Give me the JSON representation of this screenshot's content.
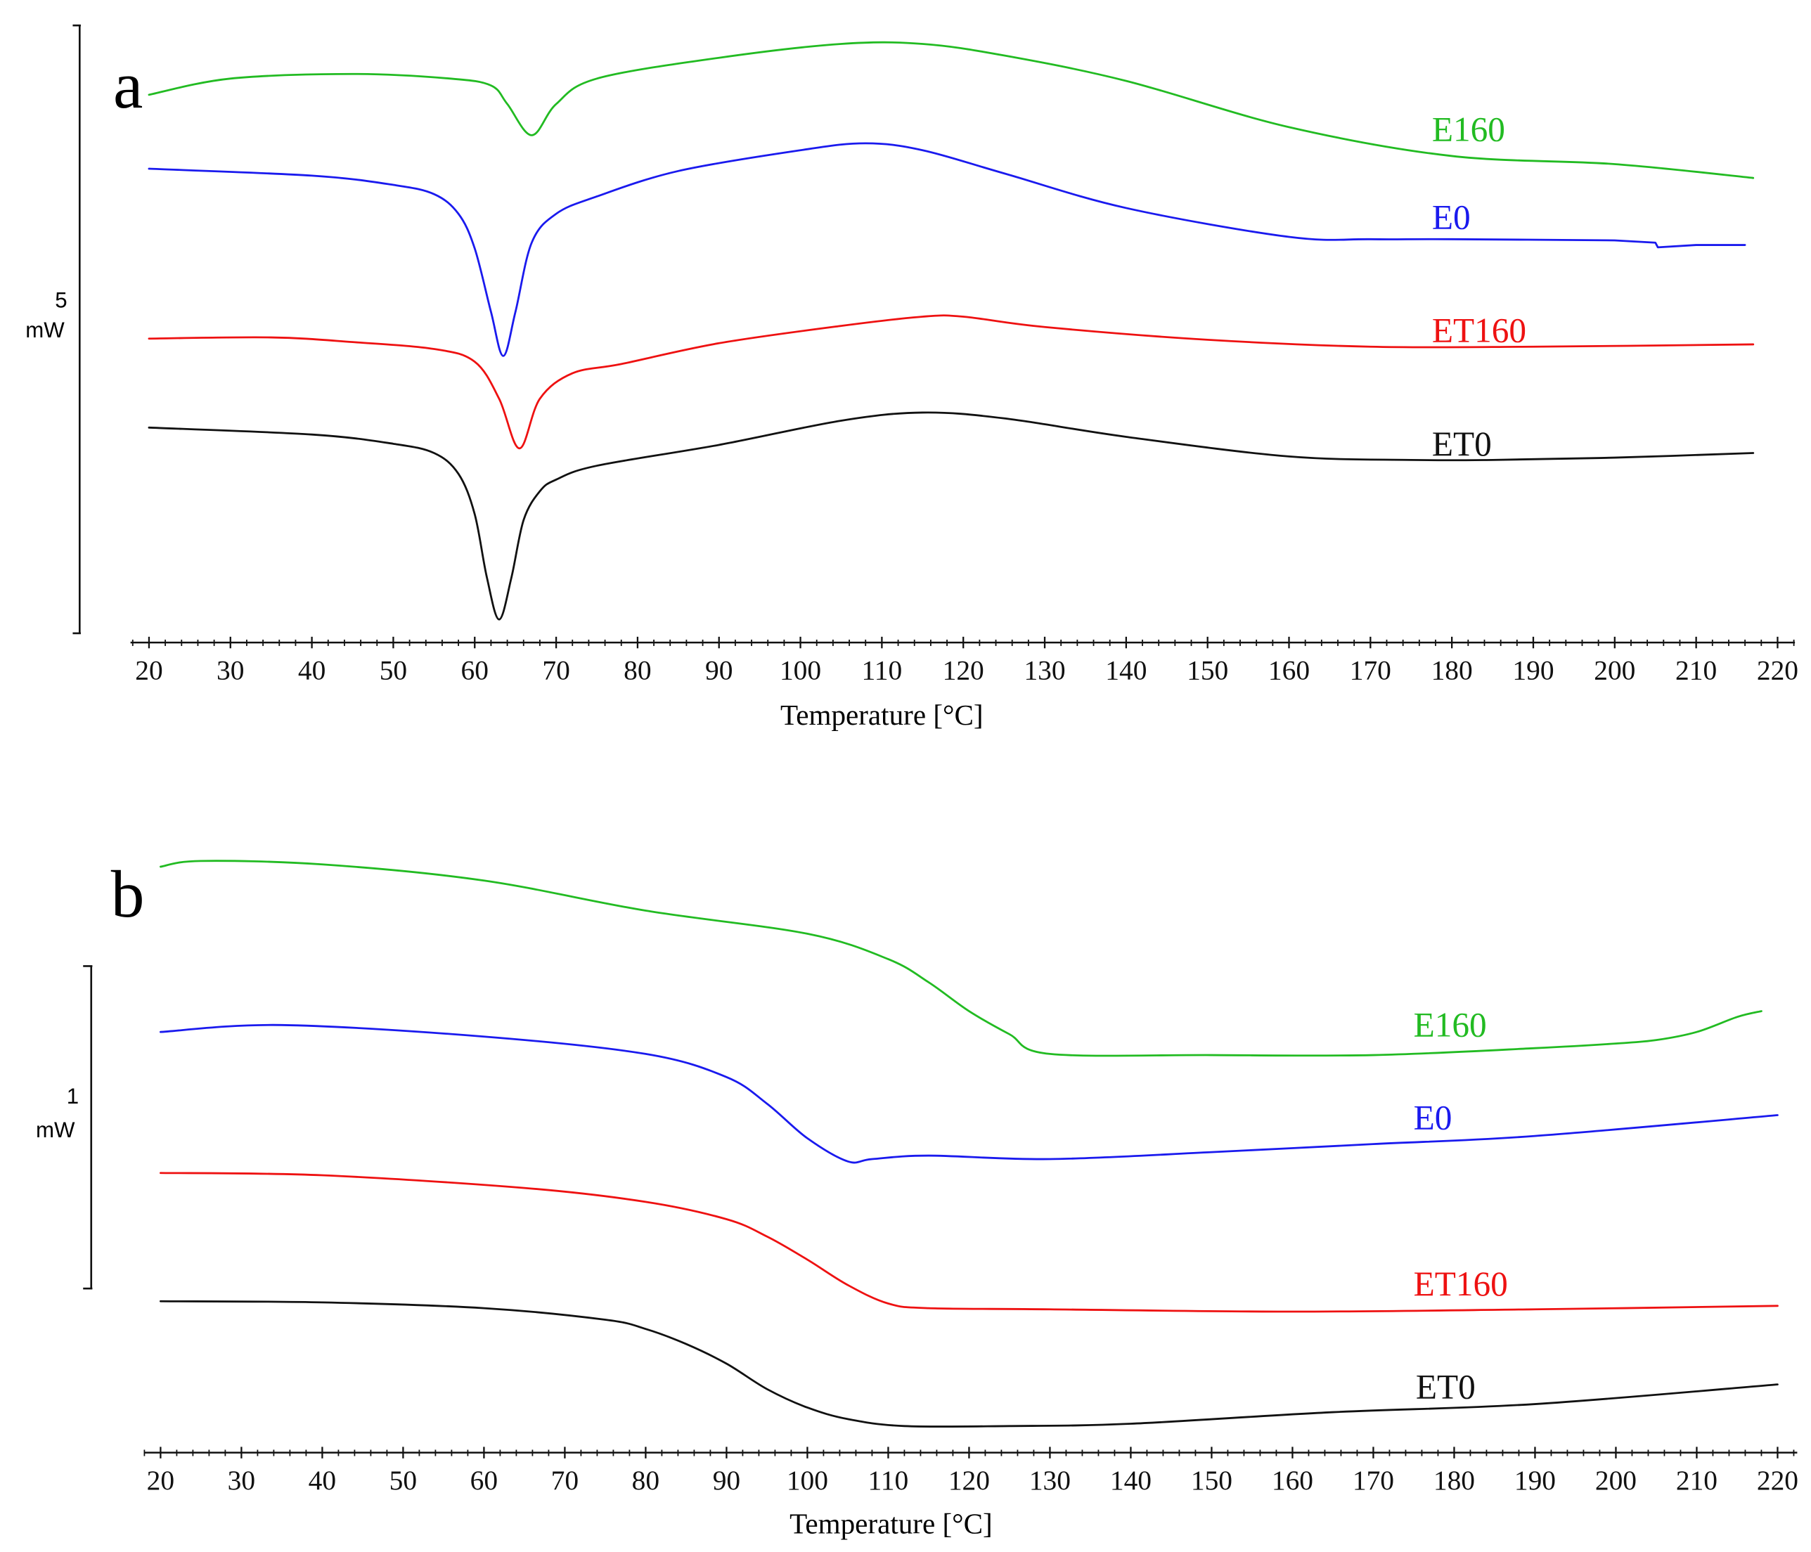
{
  "chart_data": [
    {
      "type": "line",
      "panel_label": "a",
      "xlabel": "Temperature [°C]",
      "xticks": [
        20,
        30,
        40,
        50,
        60,
        70,
        80,
        90,
        100,
        110,
        120,
        130,
        140,
        150,
        160,
        170,
        180,
        190,
        200,
        210,
        220
      ],
      "xlim": [
        20,
        220
      ],
      "scale_bar": {
        "value": "5",
        "unit": "mW"
      },
      "series": [
        {
          "name": "E160",
          "color": "#22bb22",
          "x": [
            20,
            30,
            45,
            57,
            62,
            64,
            67,
            70,
            75,
            90,
            105,
            115,
            125,
            140,
            160,
            180,
            200,
            217
          ],
          "y": [
            82,
            68,
            64,
            68,
            74,
            90,
            117,
            90,
            68,
            50,
            38,
            38,
            48,
            70,
            110,
            135,
            142,
            154
          ]
        },
        {
          "name": "E0",
          "color": "#1a1aee",
          "x": [
            20,
            40,
            50,
            55,
            58,
            60,
            62,
            63.5,
            65,
            67,
            70,
            75,
            85,
            100,
            108,
            115,
            125,
            140,
            160,
            170,
            180,
            200,
            205,
            205.3,
            210,
            216
          ],
          "y": [
            146,
            152,
            160,
            168,
            185,
            215,
            270,
            308,
            270,
            210,
            185,
            170,
            148,
            130,
            124,
            130,
            150,
            180,
            205,
            207,
            207,
            208,
            210,
            214,
            212,
            212
          ],
          "spline": false
        },
        {
          "name": "ET160",
          "color": "#ee1111",
          "x": [
            20,
            35,
            45,
            55,
            60,
            63,
            65.5,
            68,
            72,
            78,
            90,
            105,
            115,
            120,
            130,
            150,
            170,
            190,
            217
          ],
          "y": [
            293,
            292,
            296,
            302,
            313,
            345,
            388,
            345,
            323,
            315,
            297,
            282,
            274,
            274,
            283,
            294,
            300,
            300,
            298
          ]
        },
        {
          "name": "ET0",
          "color": "#111111",
          "x": [
            20,
            40,
            50,
            55,
            58,
            60,
            61.5,
            63,
            64.5,
            66,
            68,
            70,
            75,
            90,
            105,
            115,
            125,
            140,
            160,
            175,
            185,
            200,
            217
          ],
          "y": [
            370,
            376,
            384,
            392,
            410,
            445,
            500,
            536,
            500,
            450,
            425,
            415,
            403,
            385,
            364,
            357,
            362,
            378,
            395,
            398,
            398,
            396,
            392
          ]
        }
      ],
      "labels": [
        "E160",
        "E0",
        "ET160",
        "ET0"
      ]
    },
    {
      "type": "line",
      "panel_label": "b",
      "xlabel": "Temperature [°C]",
      "xticks": [
        20,
        30,
        40,
        50,
        60,
        70,
        80,
        90,
        100,
        110,
        120,
        130,
        140,
        150,
        160,
        170,
        180,
        190,
        200,
        210,
        220
      ],
      "xlim": [
        20,
        220
      ],
      "scale_bar": {
        "value": "1",
        "unit": "mW"
      },
      "series": [
        {
          "name": "E160",
          "color": "#22bb22",
          "x": [
            20,
            25,
            40,
            60,
            80,
            100,
            110,
            115,
            120,
            125,
            130,
            150,
            170,
            190,
            200,
            205,
            210,
            215,
            218
          ],
          "y": [
            750,
            745,
            748,
            762,
            788,
            808,
            830,
            850,
            875,
            895,
            912,
            913,
            913,
            907,
            903,
            900,
            893,
            880,
            875
          ]
        },
        {
          "name": "E0",
          "color": "#1a1aee",
          "x": [
            20,
            35,
            60,
            80,
            90,
            95,
            100,
            105,
            108,
            115,
            130,
            150,
            170,
            190,
            220
          ],
          "y": [
            893,
            887,
            897,
            912,
            932,
            955,
            985,
            1005,
            1003,
            1000,
            1003,
            997,
            990,
            983,
            965
          ]
        },
        {
          "name": "ET160",
          "color": "#ee1111",
          "x": [
            20,
            40,
            65,
            80,
            90,
            95,
            100,
            105,
            110,
            115,
            130,
            160,
            190,
            220
          ],
          "y": [
            1015,
            1017,
            1028,
            1040,
            1055,
            1070,
            1090,
            1112,
            1128,
            1132,
            1133,
            1135,
            1133,
            1130
          ]
        },
        {
          "name": "ET0",
          "color": "#111111",
          "x": [
            20,
            40,
            60,
            75,
            80,
            85,
            90,
            95,
            100,
            105,
            112,
            125,
            140,
            165,
            190,
            220
          ],
          "y": [
            1126,
            1127,
            1132,
            1142,
            1150,
            1163,
            1180,
            1202,
            1218,
            1228,
            1234,
            1234,
            1232,
            1222,
            1215,
            1198
          ]
        }
      ],
      "labels": [
        "E160",
        "E0",
        "ET160",
        "ET0"
      ]
    }
  ]
}
